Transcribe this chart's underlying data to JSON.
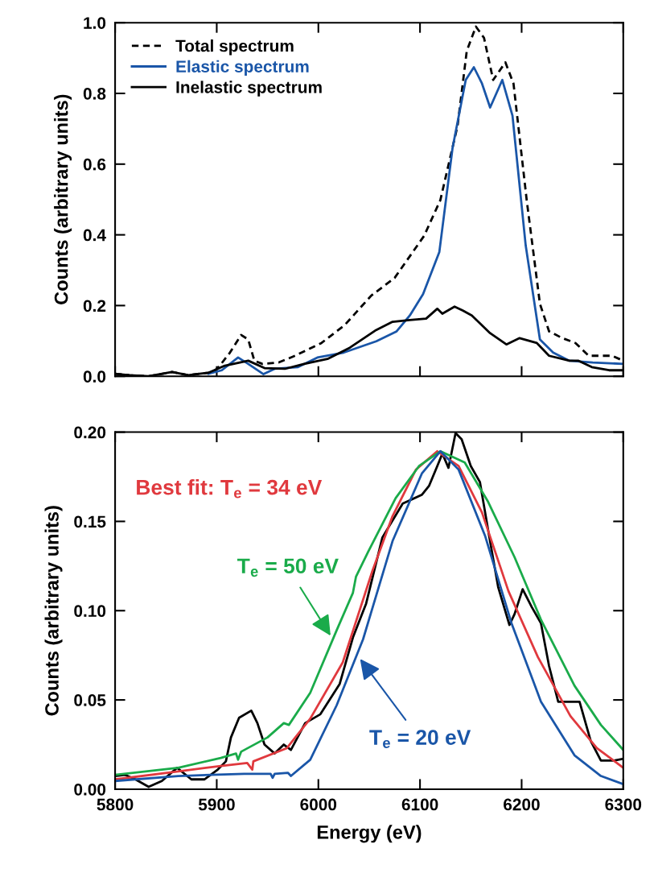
{
  "chart_data": [
    {
      "type": "line",
      "ylabel": "Counts (arbitrary units)",
      "xlim": [
        5800,
        6300
      ],
      "xticks": [
        5800,
        5900,
        6000,
        6100,
        6200,
        6300
      ],
      "ylim": [
        0,
        1.0
      ],
      "yticks": [
        {
          "value": 0,
          "label": "0.0"
        },
        0.2,
        0.4,
        0.6,
        0.8,
        {
          "value": 1.0,
          "label": "1.0"
        }
      ],
      "tick_labels": "y",
      "legend": "top left",
      "grid": false,
      "series": [
        {
          "name": "Total spectrum",
          "color": "#000000",
          "line_style": "dashed",
          "x": [
            5800,
            5814,
            5833,
            5856,
            5872,
            5892,
            5897,
            5903,
            5913,
            5924,
            5931,
            5937,
            5945,
            5961,
            5977,
            6003,
            6026,
            6052,
            6075,
            6104,
            6120,
            6137,
            6146,
            6155,
            6163,
            6172,
            6184,
            6192,
            6205,
            6218,
            6227,
            6240,
            6253,
            6266,
            6289,
            6300
          ],
          "values": [
            0.007,
            0.003,
            0.0,
            0.012,
            0.003,
            0.01,
            0.012,
            0.03,
            0.067,
            0.117,
            0.104,
            0.044,
            0.035,
            0.039,
            0.058,
            0.094,
            0.145,
            0.228,
            0.278,
            0.397,
            0.498,
            0.709,
            0.92,
            0.989,
            0.957,
            0.838,
            0.888,
            0.828,
            0.498,
            0.205,
            0.127,
            0.108,
            0.094,
            0.058,
            0.058,
            0.044
          ]
        },
        {
          "name": "Elastic spectrum",
          "color": "#1a56a8",
          "line_style": "solid",
          "x": [
            5892,
            5905,
            5921,
            5931,
            5946,
            5957,
            5980,
            5999,
            6025,
            6057,
            6077,
            6090,
            6103,
            6119,
            6132,
            6145,
            6153,
            6161,
            6169,
            6181,
            6191,
            6204,
            6218,
            6231,
            6247,
            6270,
            6300
          ],
          "values": [
            0.007,
            0.017,
            0.053,
            0.035,
            0.006,
            0.021,
            0.026,
            0.053,
            0.067,
            0.099,
            0.127,
            0.172,
            0.232,
            0.351,
            0.645,
            0.838,
            0.874,
            0.828,
            0.76,
            0.838,
            0.737,
            0.37,
            0.104,
            0.067,
            0.044,
            0.039,
            0.035
          ]
        },
        {
          "name": "Inelastic spectrum",
          "color": "#000000",
          "line_style": "solid",
          "x": [
            5800,
            5814,
            5833,
            5856,
            5872,
            5892,
            5908,
            5931,
            5947,
            5967,
            5986,
            6009,
            6031,
            6057,
            6073,
            6090,
            6106,
            6117,
            6122,
            6134,
            6142,
            6151,
            6169,
            6185,
            6198,
            6215,
            6227,
            6247,
            6256,
            6269,
            6286,
            6300
          ],
          "values": [
            0.007,
            0.003,
            0.0,
            0.012,
            0.003,
            0.01,
            0.03,
            0.044,
            0.023,
            0.021,
            0.035,
            0.049,
            0.081,
            0.131,
            0.154,
            0.159,
            0.163,
            0.191,
            0.177,
            0.197,
            0.186,
            0.172,
            0.122,
            0.09,
            0.108,
            0.094,
            0.058,
            0.044,
            0.044,
            0.026,
            0.017,
            0.017
          ]
        }
      ]
    },
    {
      "type": "line",
      "xlabel": "Energy (eV)",
      "ylabel": "Counts (arbitrary units)",
      "xlim": [
        5800,
        6300
      ],
      "xticks": [
        5800,
        5900,
        6000,
        6100,
        6200,
        6300
      ],
      "ylim": [
        0,
        0.2
      ],
      "yticks": [
        {
          "value": 0,
          "label": "0.00"
        },
        0.05,
        {
          "value": 0.1,
          "label": "0.10"
        },
        0.15,
        {
          "value": 0.2,
          "label": "0.20"
        }
      ],
      "legend": false,
      "grid": false,
      "annotations": [
        {
          "text": "T$_{e}$ = 50 eV",
          "x": 6012,
          "y": 0.086
        },
        {
          "text": "T$_{e}$ = 20 eV",
          "x": 6041,
          "y": 0.073
        }
      ],
      "series": [
        {
          "color": "#000000",
          "x": [
            5800,
            5810,
            5820,
            5833,
            5846,
            5861,
            5875,
            5888,
            5901,
            5909,
            5914,
            5922,
            5934,
            5940,
            5947,
            5957,
            5966,
            5973,
            5987,
            6002,
            6021,
            6034,
            6047,
            6063,
            6083,
            6102,
            6109,
            6117,
            6122,
            6128,
            6135,
            6141,
            6150,
            6159,
            6168,
            6177,
            6188,
            6193,
            6201,
            6210,
            6219,
            6227,
            6236,
            6245,
            6257,
            6268,
            6278,
            6291,
            6300
          ],
          "values": [
            0.0074,
            0.008,
            0.0055,
            0.0013,
            0.0046,
            0.012,
            0.0055,
            0.0055,
            0.011,
            0.0156,
            0.029,
            0.04,
            0.044,
            0.037,
            0.025,
            0.02,
            0.025,
            0.022,
            0.037,
            0.042,
            0.059,
            0.085,
            0.104,
            0.141,
            0.16,
            0.165,
            0.17,
            0.181,
            0.188,
            0.18,
            0.1995,
            0.196,
            0.181,
            0.172,
            0.142,
            0.113,
            0.092,
            0.098,
            0.112,
            0.102,
            0.093,
            0.069,
            0.049,
            0.049,
            0.049,
            0.027,
            0.016,
            0.016,
            0.017
          ]
        },
        {
          "name": "Best fit: T$_{e}$ = 34 eV",
          "color": "#e0393e",
          "x": [
            5800,
            5862,
            5904,
            5930,
            5935,
            5936,
            5969,
            5992,
            6024,
            6053,
            6073,
            6096,
            6117,
            6138,
            6161,
            6187,
            6216,
            6248,
            6274,
            6300
          ],
          "values": [
            0.0055,
            0.01,
            0.013,
            0.0147,
            0.011,
            0.0156,
            0.023,
            0.0395,
            0.071,
            0.122,
            0.153,
            0.179,
            0.1893,
            0.181,
            0.155,
            0.111,
            0.074,
            0.041,
            0.023,
            0.012
          ]
        },
        {
          "color": "#1aab4a",
          "x": [
            5800,
            5862,
            5904,
            5919,
            5921,
            5924,
            5950,
            5966,
            5971,
            5992,
            6018,
            6034,
            6037,
            6049,
            6076,
            6099,
            6120,
            6144,
            6167,
            6193,
            6219,
            6252,
            6278,
            6300
          ],
          "values": [
            0.008,
            0.012,
            0.0175,
            0.02,
            0.0165,
            0.021,
            0.029,
            0.037,
            0.036,
            0.054,
            0.089,
            0.11,
            0.119,
            0.133,
            0.163,
            0.181,
            0.1893,
            0.183,
            0.161,
            0.13,
            0.095,
            0.058,
            0.036,
            0.022
          ]
        },
        {
          "color": "#1a56a8",
          "x": [
            5800,
            5862,
            5927,
            5953,
            5955,
            5957,
            5970,
            5973,
            5992,
            6018,
            6044,
            6073,
            6102,
            6120,
            6138,
            6164,
            6190,
            6219,
            6252,
            6278,
            6300
          ],
          "values": [
            0.0046,
            0.0074,
            0.0086,
            0.0086,
            0.0064,
            0.0086,
            0.0092,
            0.0074,
            0.0165,
            0.047,
            0.084,
            0.139,
            0.177,
            0.1893,
            0.179,
            0.142,
            0.093,
            0.049,
            0.019,
            0.0074,
            0.0028
          ]
        }
      ]
    }
  ]
}
